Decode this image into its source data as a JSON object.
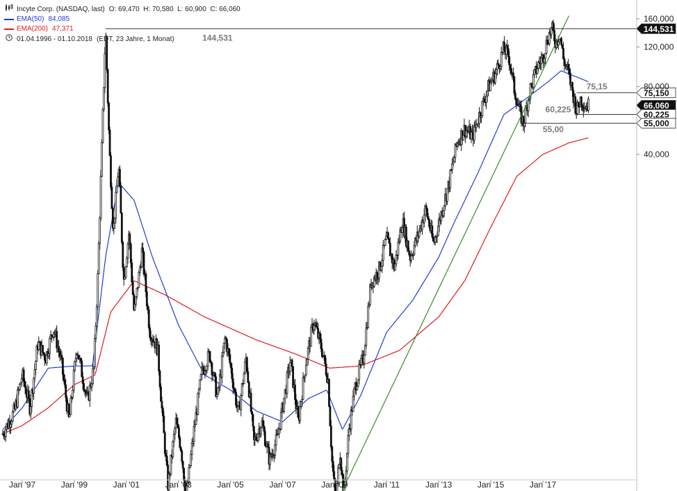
{
  "legend": {
    "title": "Incyte Corp. (NASDAQ, last)",
    "ohlc": "O: 69,470  H: 70,580  L: 60,900  C: 66,060",
    "ema50_label": "EMA(50)",
    "ema50_value": "84,085",
    "ema200_label": "EMA(200)",
    "ema200_value": "47,371",
    "range": "01.04.1996 - 01.10.2018",
    "range_note": "(EDT, 23 Jahre, 1 Monat)",
    "chart_icon": "candlestick-icon",
    "clock_icon": "clock-icon"
  },
  "colors": {
    "ema50": "#1f3cd6",
    "ema200": "#e0191a",
    "trendline": "#3a8a2a",
    "candles": "#111111",
    "level_lines": "#333333",
    "level_text": "#7a7a7a"
  },
  "chart_data": {
    "type": "candlestick",
    "title": "Incyte Corp. (NASDAQ, last)",
    "y_scale": "log",
    "y_ticks": [
      "40,000",
      "80,000",
      "120,000",
      "160,000"
    ],
    "y_tick_values": [
      40,
      80,
      120,
      160
    ],
    "x_ticks": [
      "Jan '97",
      "Jan '99",
      "Jan '01",
      "Jan '03",
      "Jan '05",
      "Jan '07",
      "Jan '09",
      "Jan '11",
      "Jan '13",
      "Jan '15",
      "Jan '17"
    ],
    "x_tick_years": [
      1997,
      1999,
      2001,
      2003,
      2005,
      2007,
      2009,
      2011,
      2013,
      2015,
      2017
    ],
    "price_path": [
      [
        1996.25,
        2.3
      ],
      [
        1996.7,
        2.9
      ],
      [
        1997.0,
        4.2
      ],
      [
        1997.3,
        3.0
      ],
      [
        1997.6,
        5.8
      ],
      [
        1997.9,
        5.0
      ],
      [
        1998.2,
        6.8
      ],
      [
        1998.5,
        4.8
      ],
      [
        1998.8,
        2.6
      ],
      [
        1999.1,
        5.6
      ],
      [
        1999.5,
        3.2
      ],
      [
        1999.75,
        4.5
      ],
      [
        1999.9,
        11.0
      ],
      [
        2000.05,
        40.0
      ],
      [
        2000.2,
        144.5
      ],
      [
        2000.35,
        42.0
      ],
      [
        2000.5,
        18.0
      ],
      [
        2000.7,
        36.0
      ],
      [
        2000.9,
        11.0
      ],
      [
        2001.1,
        18.0
      ],
      [
        2001.3,
        7.8
      ],
      [
        2001.6,
        15.0
      ],
      [
        2001.9,
        6.6
      ],
      [
        2002.2,
        5.5
      ],
      [
        2002.4,
        2.6
      ],
      [
        2002.6,
        1.35
      ],
      [
        2002.9,
        2.6
      ],
      [
        2003.1,
        2.0
      ],
      [
        2003.3,
        1.2
      ],
      [
        2003.6,
        2.4
      ],
      [
        2003.9,
        4.3
      ],
      [
        2004.2,
        5.2
      ],
      [
        2004.5,
        3.3
      ],
      [
        2004.8,
        6.2
      ],
      [
        2005.0,
        4.6
      ],
      [
        2005.3,
        2.8
      ],
      [
        2005.6,
        5.0
      ],
      [
        2005.9,
        2.1
      ],
      [
        2006.2,
        2.6
      ],
      [
        2006.5,
        1.75
      ],
      [
        2006.8,
        2.2
      ],
      [
        2007.0,
        3.0
      ],
      [
        2007.3,
        4.9
      ],
      [
        2007.6,
        2.6
      ],
      [
        2007.9,
        4.8
      ],
      [
        2008.2,
        7.3
      ],
      [
        2008.5,
        5.5
      ],
      [
        2008.75,
        4.0
      ],
      [
        2008.9,
        1.75
      ],
      [
        2009.05,
        1.12
      ],
      [
        2009.2,
        2.0
      ],
      [
        2009.35,
        1.2
      ],
      [
        2009.55,
        2.4
      ],
      [
        2009.8,
        3.8
      ],
      [
        2010.1,
        5.0
      ],
      [
        2010.4,
        10.8
      ],
      [
        2010.7,
        12.2
      ],
      [
        2011.0,
        17.0
      ],
      [
        2011.3,
        12.5
      ],
      [
        2011.6,
        20.5
      ],
      [
        2011.9,
        14.0
      ],
      [
        2012.2,
        17.5
      ],
      [
        2012.5,
        23.0
      ],
      [
        2012.8,
        16.0
      ],
      [
        2013.1,
        22.0
      ],
      [
        2013.4,
        30.0
      ],
      [
        2013.7,
        45.0
      ],
      [
        2014.0,
        52.0
      ],
      [
        2014.3,
        48.0
      ],
      [
        2014.6,
        62.0
      ],
      [
        2014.9,
        79.0
      ],
      [
        2015.2,
        93.0
      ],
      [
        2015.5,
        118.0
      ],
      [
        2015.7,
        108.0
      ],
      [
        2015.9,
        78.0
      ],
      [
        2016.1,
        62.0
      ],
      [
        2016.25,
        55.0
      ],
      [
        2016.5,
        77.0
      ],
      [
        2016.8,
        99.0
      ],
      [
        2017.0,
        108.0
      ],
      [
        2017.2,
        133.0
      ],
      [
        2017.35,
        144.5
      ],
      [
        2017.5,
        125.0
      ],
      [
        2017.65,
        138.0
      ],
      [
        2017.8,
        104.0
      ],
      [
        2017.95,
        95.0
      ],
      [
        2018.15,
        75.0
      ],
      [
        2018.3,
        62.0
      ],
      [
        2018.45,
        71.0
      ],
      [
        2018.6,
        66.0
      ],
      [
        2018.75,
        66.06
      ]
    ],
    "ema50_path": [
      [
        1996.25,
        2.4
      ],
      [
        1997.0,
        3.0
      ],
      [
        1998.0,
        4.5
      ],
      [
        1999.0,
        4.6
      ],
      [
        1999.7,
        4.6
      ],
      [
        2000.2,
        14.0
      ],
      [
        2000.7,
        30.0
      ],
      [
        2001.3,
        25.0
      ],
      [
        2002.0,
        14.0
      ],
      [
        2003.0,
        7.0
      ],
      [
        2004.0,
        4.2
      ],
      [
        2005.0,
        3.6
      ],
      [
        2006.0,
        2.9
      ],
      [
        2007.0,
        2.6
      ],
      [
        2008.0,
        3.3
      ],
      [
        2008.7,
        3.6
      ],
      [
        2009.3,
        2.4
      ],
      [
        2010.0,
        3.4
      ],
      [
        2011.0,
        6.5
      ],
      [
        2012.0,
        9.0
      ],
      [
        2013.0,
        14.0
      ],
      [
        2013.6,
        20.0
      ],
      [
        2014.5,
        33.0
      ],
      [
        2015.5,
        60.0
      ],
      [
        2016.3,
        70.0
      ],
      [
        2017.2,
        84.0
      ],
      [
        2017.7,
        94.0
      ],
      [
        2018.75,
        84.085
      ]
    ],
    "ema200_path": [
      [
        1996.25,
        2.3
      ],
      [
        1997.0,
        2.5
      ],
      [
        1998.0,
        3.0
      ],
      [
        1999.0,
        3.8
      ],
      [
        1999.8,
        4.2
      ],
      [
        2000.4,
        8.0
      ],
      [
        2001.3,
        11.0
      ],
      [
        2002.5,
        9.5
      ],
      [
        2004.0,
        7.6
      ],
      [
        2006.0,
        6.0
      ],
      [
        2007.5,
        5.2
      ],
      [
        2008.8,
        4.5
      ],
      [
        2010.0,
        4.6
      ],
      [
        2011.5,
        5.4
      ],
      [
        2013.0,
        7.6
      ],
      [
        2014.0,
        11.0
      ],
      [
        2015.0,
        19.0
      ],
      [
        2016.0,
        32.0
      ],
      [
        2017.0,
        40.0
      ],
      [
        2018.0,
        45.0
      ],
      [
        2018.75,
        47.371
      ]
    ],
    "trendline": {
      "x1": 2009.05,
      "y1": 1.12,
      "x2": 2018.0,
      "y2": 165.0
    },
    "levels": [
      {
        "name": "high",
        "value": 144.531,
        "x_start": 2000.2,
        "label": "144,531",
        "axis_label": "144,531",
        "active": true
      },
      {
        "name": "resistance",
        "value": 75.15,
        "x_start": 2018.3,
        "label": "75,15",
        "axis_label": "75,150",
        "active": false
      },
      {
        "name": "last",
        "value": 66.06,
        "x_start": null,
        "label": "",
        "axis_label": "66,060",
        "active": true
      },
      {
        "name": "support",
        "value": 60.225,
        "x_start": 2018.3,
        "label": "60,225",
        "axis_label": "60,225",
        "active": false
      },
      {
        "name": "low",
        "value": 55.0,
        "x_start": 2016.25,
        "label": "55,00",
        "axis_label": "55,000",
        "active": false
      }
    ]
  }
}
